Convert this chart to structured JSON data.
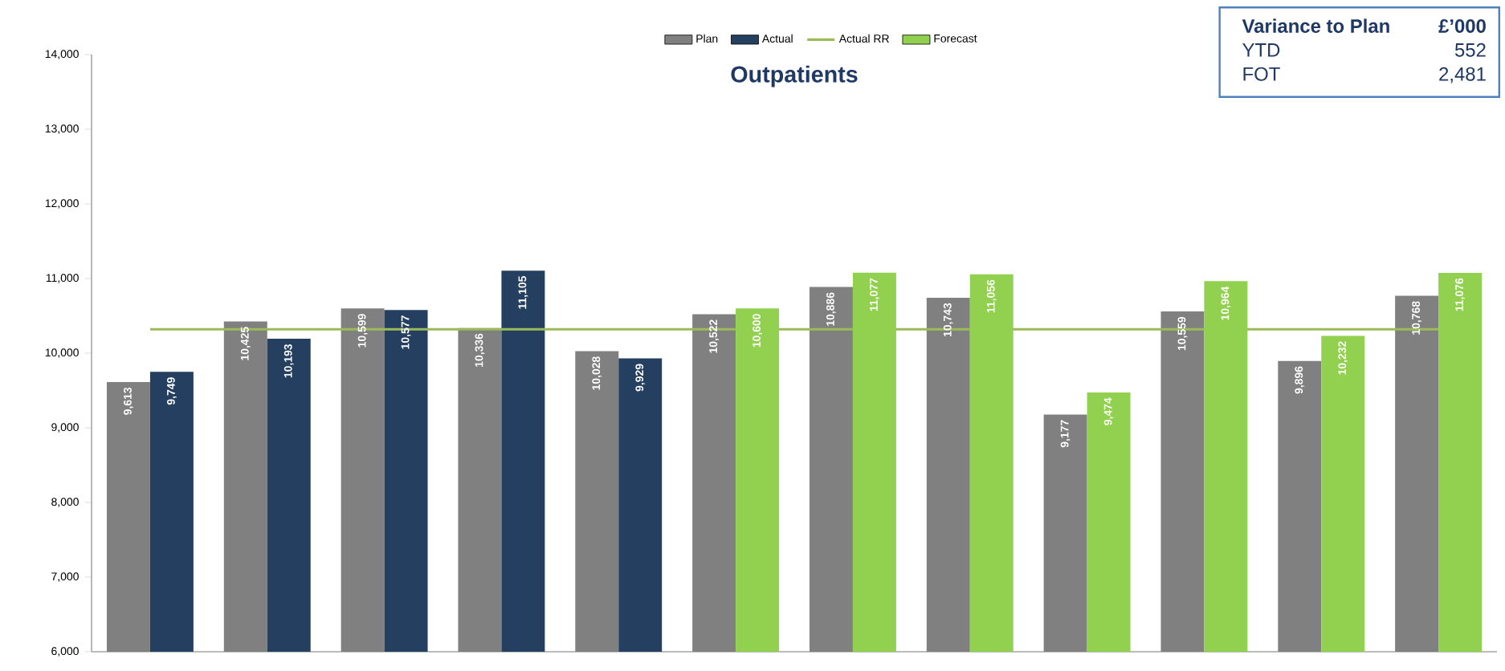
{
  "chart_data": {
    "type": "bar",
    "title": "Outpatients",
    "categories": [
      null,
      null,
      null,
      null,
      null,
      null,
      null,
      null,
      null,
      null,
      null,
      null
    ],
    "series": [
      {
        "name": "Plan",
        "color": "#808080",
        "values": [
          9613,
          10425,
          10599,
          10336,
          10028,
          10522,
          10886,
          10743,
          9177,
          10559,
          9896,
          10768
        ],
        "value_labels": [
          "9,613",
          "10,425",
          "10,599",
          "10,336",
          "10,028",
          "10,522",
          "10,886",
          "10,743",
          "9,177",
          "10,559",
          "9,896",
          "10,768"
        ]
      },
      {
        "name": "Actual",
        "color": "#243f60",
        "values": [
          9749,
          10193,
          10577,
          11105,
          9929,
          null,
          null,
          null,
          null,
          null,
          null,
          null
        ],
        "value_labels": [
          "9,749",
          "10,193",
          "10,577",
          "11,105",
          "9,929",
          null,
          null,
          null,
          null,
          null,
          null,
          null
        ]
      },
      {
        "name": "Actual RR",
        "type": "line",
        "color": "#9bbb59",
        "values": [
          10320,
          10320,
          10320,
          10320,
          10320,
          10320,
          10320,
          10320,
          10320,
          10320,
          10320,
          10320
        ]
      },
      {
        "name": "Forecast",
        "color": "#92d050",
        "values": [
          null,
          null,
          null,
          null,
          null,
          10600,
          11077,
          11056,
          9474,
          10964,
          10232,
          11076
        ],
        "value_labels": [
          null,
          null,
          null,
          null,
          null,
          "10,600",
          "11,077",
          "11,056",
          "9,474",
          "10,964",
          "10,232",
          "11,076"
        ]
      }
    ],
    "ylim": [
      6000,
      14000
    ],
    "yticks": [
      {
        "value": 6000,
        "label": "6,000"
      },
      {
        "value": 7000,
        "label": "7,000"
      },
      {
        "value": 8000,
        "label": "8,000"
      },
      {
        "value": 9000,
        "label": "9,000"
      },
      {
        "value": 10000,
        "label": "10,000"
      },
      {
        "value": 11000,
        "label": "11,000"
      },
      {
        "value": 12000,
        "label": "12,000"
      },
      {
        "value": 13000,
        "label": "13,000"
      },
      {
        "value": 14000,
        "label": "14,000"
      }
    ],
    "legend": "top",
    "marker": "none",
    "annotations": [
      "Variance to Plan",
      "£’000",
      "YTD",
      "552",
      "FOT",
      "2,481"
    ]
  }
}
